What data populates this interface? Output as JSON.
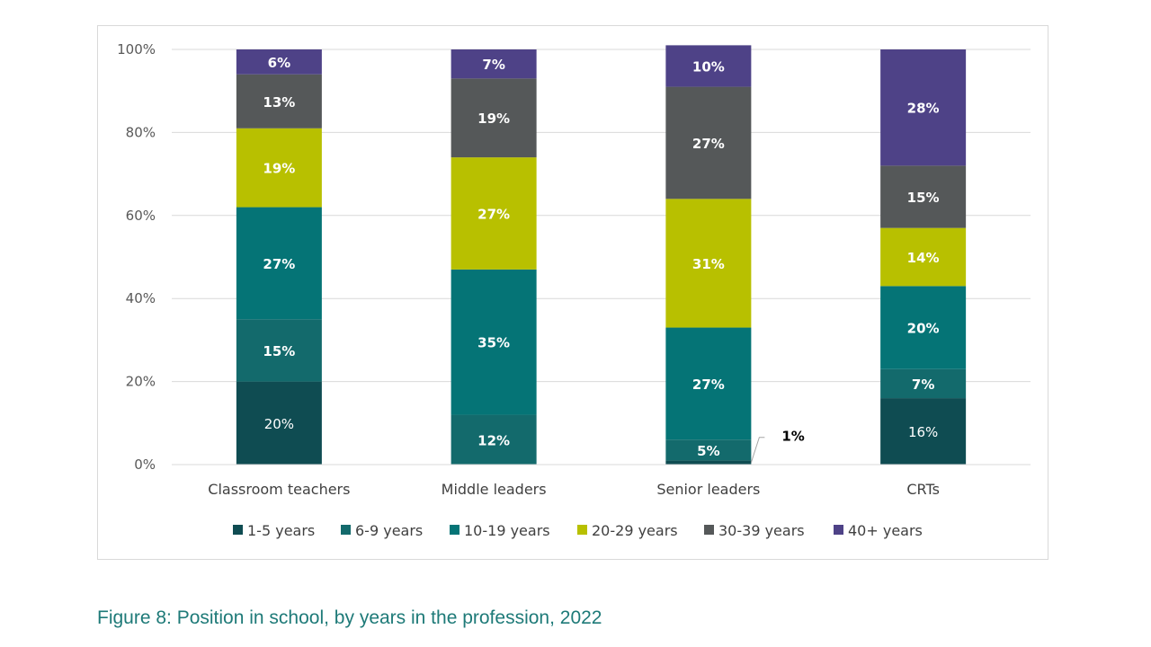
{
  "chart_data": {
    "type": "bar",
    "stacked": true,
    "percent_stacked": true,
    "title": "",
    "xlabel": "",
    "ylabel": "",
    "ylim": [
      0,
      100
    ],
    "yticks": [
      "0%",
      "20%",
      "40%",
      "60%",
      "80%",
      "100%"
    ],
    "grid": true,
    "legend_position": "bottom",
    "categories": [
      "Classroom teachers",
      "Middle leaders",
      "Senior leaders",
      "CRTs"
    ],
    "series": [
      {
        "name": "1-5 years",
        "color": "#0f4c52",
        "values": [
          20,
          0,
          1,
          16
        ],
        "labels": [
          "20%",
          "",
          "1%",
          "16%"
        ]
      },
      {
        "name": "6-9 years",
        "color": "#136a6c",
        "values": [
          15,
          12,
          5,
          7
        ],
        "labels": [
          "15%",
          "12%",
          "5%",
          "7%"
        ]
      },
      {
        "name": "10-19 years",
        "color": "#057476",
        "values": [
          27,
          35,
          27,
          20
        ],
        "labels": [
          "27%",
          "35%",
          "27%",
          "20%"
        ]
      },
      {
        "name": "20-29 years",
        "color": "#b8c000",
        "values": [
          19,
          27,
          31,
          14
        ],
        "labels": [
          "19%",
          "27%",
          "31%",
          "14%"
        ]
      },
      {
        "name": "30-39 years",
        "color": "#555859",
        "values": [
          13,
          19,
          27,
          15
        ],
        "labels": [
          "13%",
          "19%",
          "27%",
          "15%"
        ]
      },
      {
        "name": "40+ years",
        "color": "#4e4287",
        "values": [
          6,
          7,
          10,
          28
        ],
        "labels": [
          "6%",
          "7%",
          "10%",
          "28%"
        ]
      }
    ],
    "annotations": [
      {
        "text": "1%",
        "category": "Senior leaders",
        "series": "1-5 years",
        "note": "callout label outside bar"
      }
    ]
  },
  "caption": "Figure 8: Position in school, by years in the profession, 2022"
}
